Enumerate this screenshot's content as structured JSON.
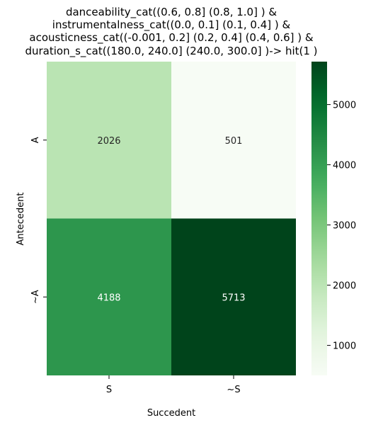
{
  "chart_data": {
    "type": "heatmap",
    "title_lines": [
      "danceability_cat((0.6, 0.8] (0.8, 1.0] ) &",
      "instrumentalness_cat((0.0, 0.1] (0.1, 0.4] ) &",
      "acousticness_cat((-0.001, 0.2] (0.2, 0.4] (0.4, 0.6] ) &",
      "duration_s_cat((180.0, 240.0] (240.0, 300.0] )-> hit(1 )"
    ],
    "xlabel": "Succedent",
    "ylabel": "Antecedent",
    "x_categories": [
      "S",
      "~S"
    ],
    "y_categories": [
      "A",
      "~A"
    ],
    "values": [
      [
        2026,
        501
      ],
      [
        4188,
        5713
      ]
    ],
    "colormap": "Greens",
    "color_range": [
      501,
      5713
    ],
    "colorbar_ticks": [
      1000,
      2000,
      3000,
      4000,
      5000
    ]
  }
}
